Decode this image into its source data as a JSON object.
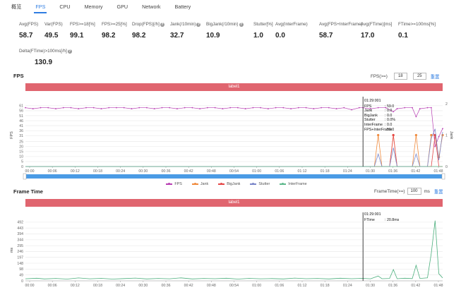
{
  "tabs": [
    {
      "label": "概览",
      "active": false
    },
    {
      "label": "FPS",
      "active": true
    },
    {
      "label": "CPU",
      "active": false
    },
    {
      "label": "Memory",
      "active": false
    },
    {
      "label": "GPU",
      "active": false
    },
    {
      "label": "Network",
      "active": false
    },
    {
      "label": "Battery",
      "active": false
    }
  ],
  "stats": [
    {
      "label": "Avg(FPS)",
      "value": "58.7",
      "help": false
    },
    {
      "label": "Var(FPS)",
      "value": "49.5",
      "help": false
    },
    {
      "label": "FPS>=18[%]",
      "value": "99.1",
      "help": false
    },
    {
      "label": "FPS>=25[%]",
      "value": "98.2",
      "help": false
    },
    {
      "label": "Drop(FPS)[/h]",
      "value": "98.2",
      "help": true
    },
    {
      "label": "Jank(/10min)",
      "value": "32.7",
      "help": true
    },
    {
      "label": "BigJank(/10min)",
      "value": "10.9",
      "help": true
    },
    {
      "label": "Stutter[%]",
      "value": "1.0",
      "help": false
    },
    {
      "label": "Avg(InterFrame)",
      "value": "0.0",
      "help": false
    },
    {
      "label": "Avg(FPS+InterFrame)",
      "value": "58.7",
      "help": false
    },
    {
      "label": "Avg(FTime)[ms]",
      "value": "17.0",
      "help": false
    },
    {
      "label": "FTime>=100ms[%]",
      "value": "0.1",
      "help": false
    },
    {
      "label": "Delta(FTime)>100ms[/h]",
      "value": "130.9",
      "help": true
    }
  ],
  "help_glyph": "?",
  "fps_section": {
    "title": "FPS",
    "control_label": "FPS(>=)",
    "threshold_1": "18",
    "threshold_2": "25",
    "reset_label": "重置",
    "banner": "label1",
    "y_label": "FPS",
    "y2_label": "Jank",
    "tooltip": {
      "time": "01:29:001",
      "rows": [
        {
          "k": "FPS",
          "v": ": 59.0"
        },
        {
          "k": "Jank",
          "v": ": 0.0"
        },
        {
          "k": "BigJank",
          "v": ": 0.0"
        },
        {
          "k": "Stutter",
          "v": ": 0.0%"
        },
        {
          "k": "InterFrame",
          "v": ": 0.0"
        },
        {
          "k": "FPS+InterFrame",
          "v": ": 59.0"
        }
      ]
    }
  },
  "legend": [
    {
      "name": "FPS",
      "color": "#b83fb3"
    },
    {
      "name": "Jank",
      "color": "#f08a3c"
    },
    {
      "name": "BigJank",
      "color": "#e54848"
    },
    {
      "name": "Stutter",
      "color": "#7b87c9"
    },
    {
      "name": "InterFrame",
      "color": "#5fb98d"
    }
  ],
  "frametime_section": {
    "title": "Frame Time",
    "control_label": "FrameTime(>=)",
    "threshold": "100",
    "unit": "ms",
    "reset_label": "重置",
    "banner": "label1",
    "y_label": "ms",
    "tooltip": {
      "time": "01:29:001",
      "rows": [
        {
          "k": "FTime",
          "v": ": 20.8ms"
        }
      ]
    }
  },
  "chart_data": [
    {
      "type": "line",
      "title": "FPS",
      "x_ticks": [
        "00:00",
        "00:06",
        "00:12",
        "00:18",
        "00:24",
        "00:30",
        "00:36",
        "00:42",
        "00:48",
        "00:54",
        "01:00",
        "01:06",
        "01:12",
        "01:18",
        "01:24",
        "01:30",
        "01:36",
        "01:42",
        "01:48"
      ],
      "y_ticks": [
        0,
        5,
        10,
        15,
        20,
        25,
        31,
        36,
        41,
        46,
        51,
        56,
        61
      ],
      "ylim": [
        0,
        63
      ],
      "y2_ticks": [
        0,
        1,
        2
      ],
      "y2lim": [
        0,
        2
      ],
      "cursor_x": 89,
      "x_range_s": [
        0,
        110
      ],
      "series": [
        {
          "name": "FPS",
          "axis": "left",
          "points": [
            [
              0,
              59
            ],
            [
              2,
              58
            ],
            [
              4,
              59
            ],
            [
              6,
              59
            ],
            [
              8,
              58
            ],
            [
              10,
              59
            ],
            [
              12,
              59
            ],
            [
              14,
              58
            ],
            [
              16,
              59
            ],
            [
              18,
              59
            ],
            [
              20,
              58
            ],
            [
              22,
              59
            ],
            [
              24,
              59
            ],
            [
              26,
              59
            ],
            [
              28,
              58
            ],
            [
              30,
              59
            ],
            [
              32,
              59
            ],
            [
              34,
              58
            ],
            [
              36,
              59
            ],
            [
              38,
              59
            ],
            [
              40,
              58
            ],
            [
              42,
              59
            ],
            [
              44,
              59
            ],
            [
              46,
              58
            ],
            [
              48,
              59
            ],
            [
              50,
              59
            ],
            [
              52,
              58
            ],
            [
              54,
              59
            ],
            [
              56,
              59
            ],
            [
              58,
              58
            ],
            [
              60,
              59
            ],
            [
              62,
              59
            ],
            [
              64,
              58
            ],
            [
              66,
              59
            ],
            [
              68,
              59
            ],
            [
              70,
              58
            ],
            [
              72,
              59
            ],
            [
              74,
              59
            ],
            [
              76,
              58
            ],
            [
              78,
              59
            ],
            [
              80,
              59
            ],
            [
              82,
              58
            ],
            [
              84,
              59
            ],
            [
              86,
              57
            ],
            [
              88,
              59
            ],
            [
              89,
              59
            ],
            [
              91,
              58
            ],
            [
              93,
              59
            ],
            [
              95,
              59
            ],
            [
              97,
              55
            ],
            [
              98,
              58
            ],
            [
              100,
              59
            ],
            [
              102,
              59
            ],
            [
              103,
              50
            ],
            [
              104,
              58
            ],
            [
              106,
              59
            ],
            [
              107,
              59
            ],
            [
              108,
              20
            ],
            [
              109,
              30
            ],
            [
              110,
              38
            ]
          ]
        },
        {
          "name": "Jank",
          "axis": "right",
          "points": [
            [
              0,
              0
            ],
            [
              92,
              0
            ],
            [
              93,
              1
            ],
            [
              94,
              0
            ],
            [
              96,
              0
            ],
            [
              97,
              1
            ],
            [
              98,
              0
            ],
            [
              100,
              0
            ],
            [
              102,
              0
            ],
            [
              103,
              1
            ],
            [
              104,
              0
            ],
            [
              106,
              0
            ],
            [
              107,
              1
            ],
            [
              108,
              1
            ],
            [
              109,
              0.3
            ],
            [
              110,
              1
            ]
          ]
        },
        {
          "name": "BigJank",
          "axis": "right",
          "points": [
            [
              0,
              0
            ],
            [
              96,
              0
            ],
            [
              97,
              1
            ],
            [
              98,
              0
            ],
            [
              107,
              0
            ],
            [
              108,
              1
            ],
            [
              109,
              0
            ],
            [
              110,
              0
            ]
          ]
        },
        {
          "name": "Stutter",
          "axis": "right",
          "points": [
            [
              0,
              0
            ],
            [
              92,
              0
            ],
            [
              93,
              0.4
            ],
            [
              94,
              0
            ],
            [
              96,
              0
            ],
            [
              97,
              0.6
            ],
            [
              98,
              0
            ],
            [
              102,
              0
            ],
            [
              103,
              0.4
            ],
            [
              104,
              0
            ],
            [
              106,
              0
            ],
            [
              107,
              0.9
            ],
            [
              108,
              1.2
            ],
            [
              109,
              0.2
            ],
            [
              110,
              1.1
            ]
          ]
        },
        {
          "name": "InterFrame",
          "axis": "right",
          "points": [
            [
              0,
              0
            ],
            [
              110,
              0
            ]
          ]
        }
      ]
    },
    {
      "type": "line",
      "title": "Frame Time",
      "x_ticks": [
        "00:00",
        "00:06",
        "00:12",
        "00:18",
        "00:24",
        "00:30",
        "00:36",
        "00:42",
        "00:48",
        "00:54",
        "01:00",
        "01:06",
        "01:12",
        "01:18",
        "01:24",
        "01:30",
        "01:36",
        "01:42",
        "01:48"
      ],
      "y_ticks": [
        0,
        49,
        98,
        148,
        197,
        246,
        295,
        344,
        394,
        443,
        492
      ],
      "ylim": [
        0,
        515
      ],
      "cursor_x": 89,
      "x_range_s": [
        0,
        110
      ],
      "series": [
        {
          "name": "FTime",
          "points": [
            [
              0,
              17
            ],
            [
              3,
              22
            ],
            [
              5,
              16
            ],
            [
              8,
              20
            ],
            [
              11,
              15
            ],
            [
              14,
              24
            ],
            [
              17,
              17
            ],
            [
              20,
              21
            ],
            [
              23,
              15
            ],
            [
              26,
              19
            ],
            [
              29,
              23
            ],
            [
              32,
              16
            ],
            [
              35,
              20
            ],
            [
              38,
              17
            ],
            [
              41,
              25
            ],
            [
              44,
              16
            ],
            [
              47,
              20
            ],
            [
              50,
              18
            ],
            [
              53,
              22
            ],
            [
              56,
              15
            ],
            [
              59,
              21
            ],
            [
              62,
              17
            ],
            [
              65,
              19
            ],
            [
              68,
              16
            ],
            [
              71,
              23
            ],
            [
              74,
              18
            ],
            [
              77,
              20
            ],
            [
              80,
              16
            ],
            [
              83,
              22
            ],
            [
              86,
              18
            ],
            [
              89,
              21
            ],
            [
              91,
              17
            ],
            [
              93,
              40
            ],
            [
              94,
              18
            ],
            [
              96,
              20
            ],
            [
              97,
              95
            ],
            [
              98,
              18
            ],
            [
              100,
              22
            ],
            [
              102,
              19
            ],
            [
              103,
              130
            ],
            [
              104,
              20
            ],
            [
              106,
              25
            ],
            [
              107,
              230
            ],
            [
              108,
              505
            ],
            [
              109,
              60
            ],
            [
              110,
              25
            ]
          ]
        }
      ]
    }
  ]
}
